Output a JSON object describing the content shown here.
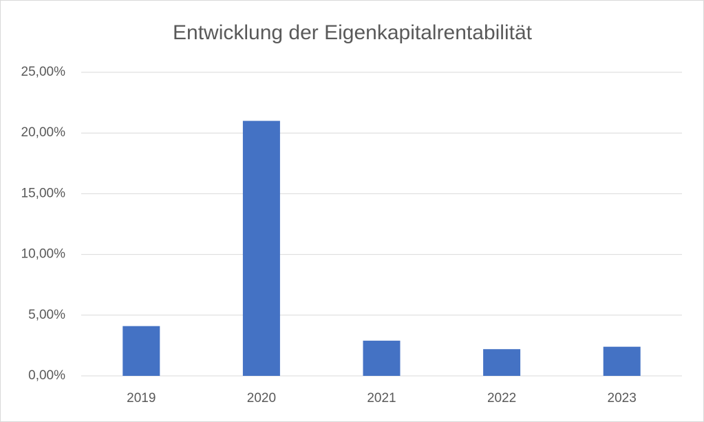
{
  "chart_data": {
    "type": "bar",
    "title": "Entwicklung der Eigenkapitalrentabilität",
    "categories": [
      "2019",
      "2020",
      "2021",
      "2022",
      "2023"
    ],
    "values": [
      4.1,
      21.0,
      2.9,
      2.2,
      2.4
    ],
    "color": "#4472c4",
    "ylim": [
      0,
      25
    ],
    "yticks": [
      {
        "value": 0,
        "label": "0,00%"
      },
      {
        "value": 5,
        "label": "5,00%"
      },
      {
        "value": 10,
        "label": "10,00%"
      },
      {
        "value": 15,
        "label": "15,00%"
      },
      {
        "value": 20,
        "label": "20,00%"
      },
      {
        "value": 25,
        "label": "25,00%"
      }
    ],
    "grid": true
  }
}
